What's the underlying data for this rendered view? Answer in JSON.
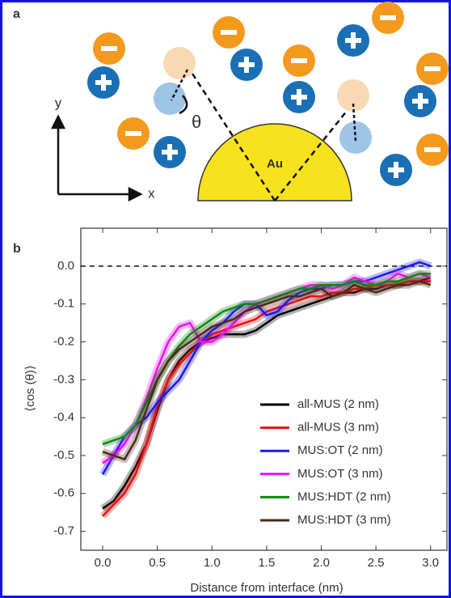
{
  "panel_a": {
    "label": "a",
    "y_axis": "y",
    "x_axis": "x",
    "angle": "θ",
    "core": "Au"
  },
  "chart_data": {
    "type": "line",
    "panel_label": "b",
    "x_label": "Distance from interface (nm)",
    "y_label": "⟨cos (θ)⟩",
    "x": [
      0.0,
      0.1,
      0.2,
      0.3,
      0.4,
      0.5,
      0.6,
      0.7,
      0.8,
      0.9,
      1.0,
      1.1,
      1.2,
      1.3,
      1.4,
      1.5,
      1.6,
      1.7,
      1.8,
      1.9,
      2.0,
      2.1,
      2.2,
      2.3,
      2.4,
      2.5,
      2.6,
      2.7,
      2.8,
      2.9,
      3.0
    ],
    "xlim": [
      -0.2,
      3.15
    ],
    "ylim": [
      -0.75,
      0.1
    ],
    "xticks": [
      {
        "value": 0,
        "label": "0.0"
      },
      {
        "value": 0.5,
        "label": "0.5"
      },
      {
        "value": 1,
        "label": "1.0"
      },
      {
        "value": 1.5,
        "label": "1.5"
      },
      {
        "value": 2,
        "label": "2.0"
      },
      {
        "value": 2.5,
        "label": "2.5"
      },
      {
        "value": 3,
        "label": "3.0"
      }
    ],
    "yticks": [
      {
        "value": 0,
        "label": "0.0"
      },
      {
        "value": -0.1,
        "label": "-0.1"
      },
      {
        "value": -0.2,
        "label": "-0.2"
      },
      {
        "value": -0.3,
        "label": "-0.3"
      },
      {
        "value": -0.4,
        "label": "-0.4"
      },
      {
        "value": -0.5,
        "label": "-0.5"
      },
      {
        "value": -0.6,
        "label": "-0.6"
      },
      {
        "value": -0.7,
        "label": "-0.7"
      }
    ],
    "reference_line": 0,
    "legend": "lower right",
    "series": [
      {
        "name": "all-MUS (2 nm)",
        "color": "#000000",
        "values": [
          -0.64,
          -0.62,
          -0.58,
          -0.53,
          -0.47,
          -0.38,
          -0.3,
          -0.25,
          -0.22,
          -0.2,
          -0.19,
          -0.18,
          -0.18,
          -0.18,
          -0.17,
          -0.15,
          -0.13,
          -0.12,
          -0.11,
          -0.1,
          -0.09,
          -0.08,
          -0.07,
          -0.07,
          -0.06,
          -0.06,
          -0.05,
          -0.05,
          -0.04,
          -0.04,
          -0.03
        ]
      },
      {
        "name": "all-MUS (3 nm)",
        "color": "#ee1111",
        "values": [
          -0.66,
          -0.63,
          -0.6,
          -0.55,
          -0.47,
          -0.37,
          -0.3,
          -0.26,
          -0.23,
          -0.2,
          -0.18,
          -0.17,
          -0.16,
          -0.15,
          -0.14,
          -0.12,
          -0.11,
          -0.1,
          -0.09,
          -0.08,
          -0.08,
          -0.07,
          -0.07,
          -0.06,
          -0.06,
          -0.05,
          -0.05,
          -0.05,
          -0.04,
          -0.04,
          -0.04
        ]
      },
      {
        "name": "MUS:OT (2 nm)",
        "color": "#1a1aee",
        "values": [
          -0.55,
          -0.5,
          -0.45,
          -0.42,
          -0.4,
          -0.36,
          -0.33,
          -0.3,
          -0.25,
          -0.2,
          -0.17,
          -0.15,
          -0.12,
          -0.1,
          -0.1,
          -0.13,
          -0.12,
          -0.09,
          -0.07,
          -0.06,
          -0.06,
          -0.05,
          -0.05,
          -0.04,
          -0.04,
          -0.03,
          -0.02,
          -0.01,
          0.0,
          0.01,
          0.0
        ]
      },
      {
        "name": "MUS:OT (3 nm)",
        "color": "#ee11ee",
        "values": [
          -0.52,
          -0.5,
          -0.47,
          -0.42,
          -0.35,
          -0.27,
          -0.2,
          -0.16,
          -0.15,
          -0.2,
          -0.2,
          -0.18,
          -0.15,
          -0.12,
          -0.1,
          -0.09,
          -0.08,
          -0.07,
          -0.06,
          -0.05,
          -0.05,
          -0.06,
          -0.05,
          -0.03,
          -0.04,
          -0.05,
          -0.04,
          -0.02,
          -0.03,
          -0.02,
          -0.03
        ]
      },
      {
        "name": "MUS:HDT (2 nm)",
        "color": "#118811",
        "values": [
          -0.47,
          -0.46,
          -0.45,
          -0.42,
          -0.36,
          -0.3,
          -0.25,
          -0.21,
          -0.18,
          -0.16,
          -0.14,
          -0.12,
          -0.11,
          -0.1,
          -0.1,
          -0.09,
          -0.08,
          -0.07,
          -0.06,
          -0.06,
          -0.05,
          -0.05,
          -0.05,
          -0.04,
          -0.05,
          -0.05,
          -0.04,
          -0.04,
          -0.03,
          -0.02,
          -0.02
        ]
      },
      {
        "name": "MUS:HDT (3 nm)",
        "color": "#4a2a1a",
        "values": [
          -0.49,
          -0.5,
          -0.51,
          -0.46,
          -0.38,
          -0.3,
          -0.25,
          -0.22,
          -0.2,
          -0.18,
          -0.16,
          -0.15,
          -0.14,
          -0.12,
          -0.11,
          -0.1,
          -0.09,
          -0.08,
          -0.08,
          -0.07,
          -0.06,
          -0.08,
          -0.07,
          -0.05,
          -0.06,
          -0.07,
          -0.06,
          -0.05,
          -0.05,
          -0.04,
          -0.05
        ]
      }
    ]
  }
}
